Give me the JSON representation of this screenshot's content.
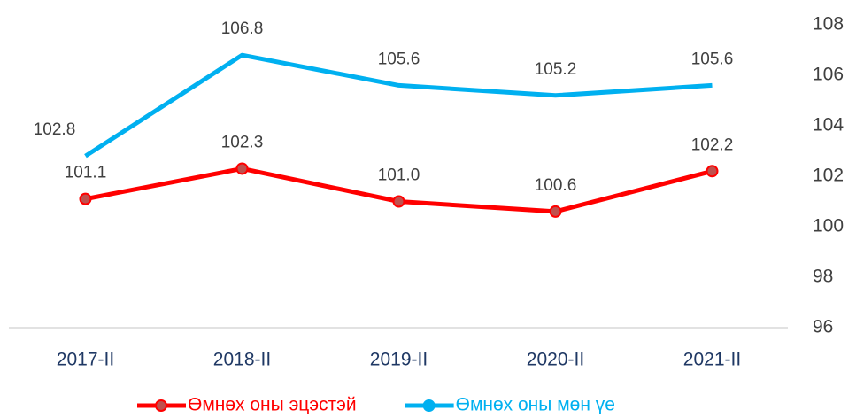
{
  "chart_data": {
    "type": "line",
    "categories": [
      "2017-II",
      "2018-II",
      "2019-II",
      "2020-II",
      "2021-II"
    ],
    "series": [
      {
        "name": "Өмнөх оны эцэстэй",
        "color": "#ff0000",
        "marker": true,
        "values": [
          101.1,
          102.3,
          101.0,
          100.6,
          102.2
        ],
        "value_labels": [
          "101.1",
          "102.3",
          "101.0",
          "100.6",
          "102.2"
        ]
      },
      {
        "name": "Өмнөх оны мөн үе",
        "color": "#00b0f0",
        "marker": false,
        "values": [
          102.8,
          106.8,
          105.6,
          105.2,
          105.6
        ],
        "value_labels": [
          "102.8",
          "106.8",
          "105.6",
          "105.2",
          "105.6"
        ]
      }
    ],
    "ylim": [
      96,
      108
    ],
    "yticks": [
      96,
      98,
      100,
      102,
      104,
      106,
      108
    ],
    "y_axis_side": "right",
    "grid": false,
    "legend": "bottom"
  }
}
